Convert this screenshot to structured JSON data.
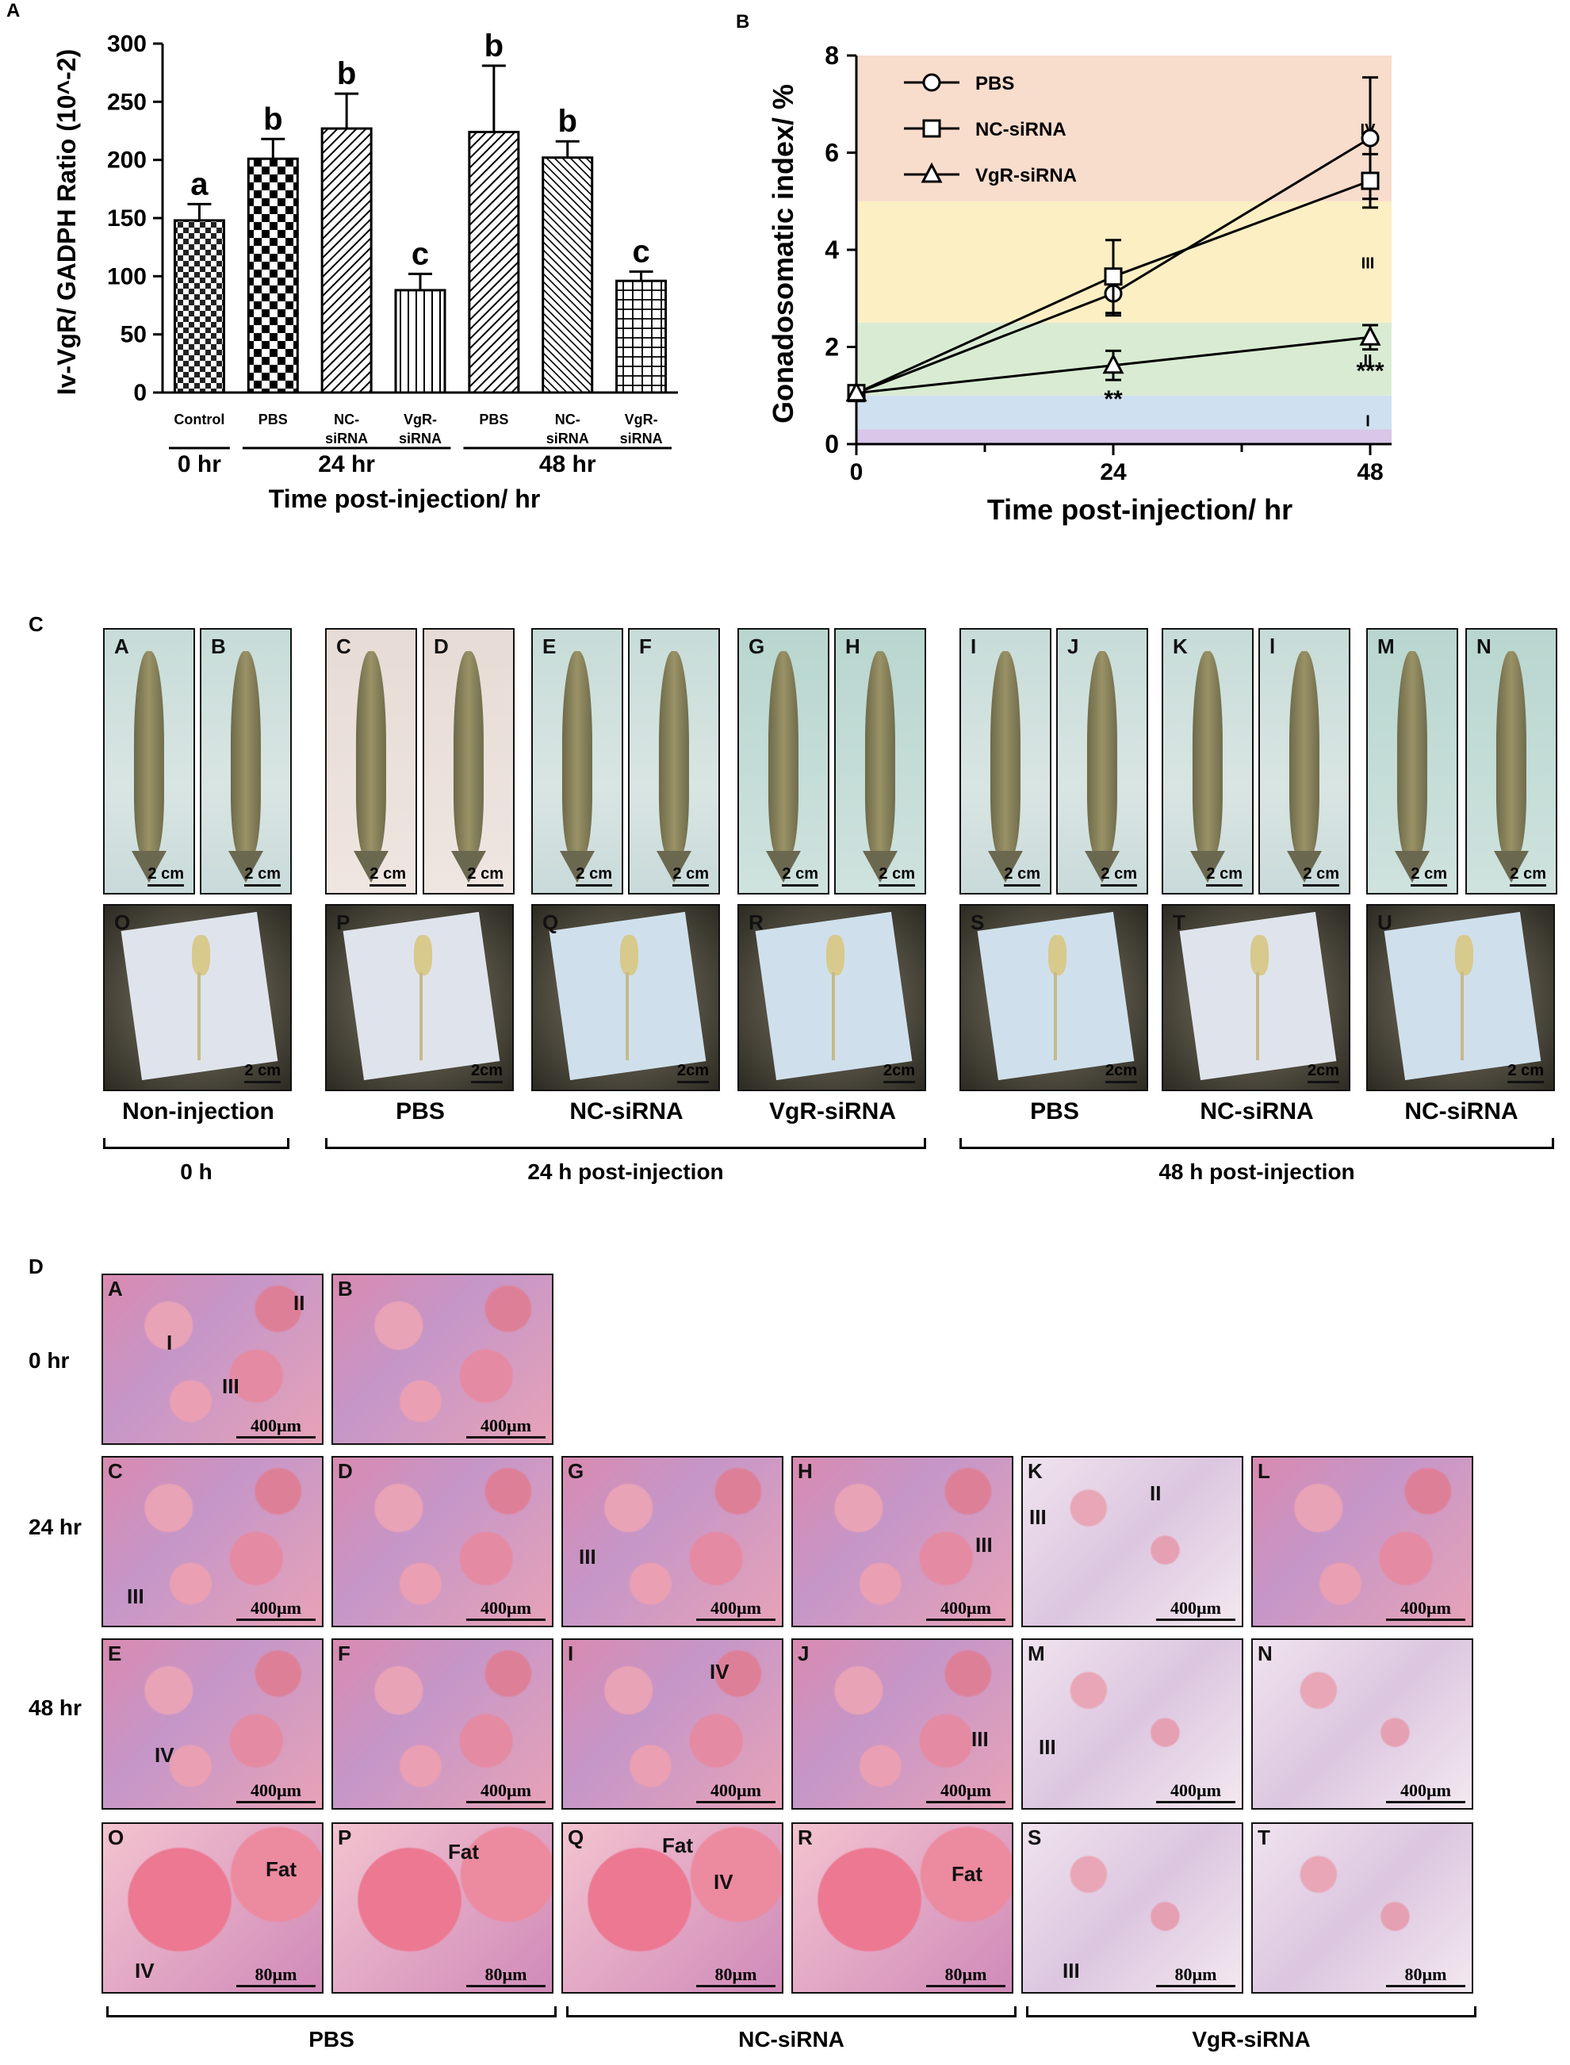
{
  "panels": {
    "A": "A",
    "B": "B",
    "C": "C",
    "D": "D"
  },
  "chart_data": [
    {
      "type": "bar",
      "panel": "A",
      "ylabel": "Iv-VgR/ GADPH Ratio (10^-2)",
      "xlabel": "Time post-injection/ hr",
      "ylim": [
        0,
        300
      ],
      "yticks": [
        "0",
        "50",
        "100",
        "150",
        "200",
        "250",
        "300"
      ],
      "categories": [
        "Control",
        "PBS",
        "NC-siRNA",
        "VgR-siRNA",
        "PBS",
        "NC-siRNA",
        "VgR-siRNA"
      ],
      "values": [
        148,
        201,
        227,
        88,
        224,
        202,
        96
      ],
      "errors": [
        14,
        17,
        30,
        14,
        57,
        14,
        8
      ],
      "letters": [
        "a",
        "b",
        "b",
        "c",
        "b",
        "b",
        "c"
      ],
      "patterns": [
        "check",
        "checkbold",
        "diagright",
        "vertical",
        "diagright",
        "diagleft",
        "grid"
      ],
      "groups": [
        "0 hr",
        "24 hr",
        "48 hr"
      ]
    },
    {
      "type": "line",
      "panel": "B",
      "ylabel": "Gonadosomatic index/ %",
      "xlabel": "Time post-injection/ hr",
      "ylim": [
        0,
        8
      ],
      "xlim": [
        0,
        50
      ],
      "xticks": [
        "0",
        "24",
        "48"
      ],
      "yticks": [
        "0",
        "2",
        "4",
        "6",
        "8"
      ],
      "x": [
        0,
        24,
        48
      ],
      "series": [
        {
          "name": "PBS",
          "marker": "circle",
          "values": [
            1.05,
            3.1,
            6.3
          ],
          "errors": [
            0.05,
            0.45,
            1.25
          ]
        },
        {
          "name": "NC-siRNA",
          "marker": "square",
          "values": [
            1.05,
            3.45,
            5.42
          ],
          "errors": [
            0.05,
            0.75,
            0.55
          ]
        },
        {
          "name": "VgR-siRNA",
          "marker": "triangle",
          "values": [
            1.05,
            1.62,
            2.2
          ],
          "errors": [
            0.05,
            0.3,
            0.25
          ]
        }
      ],
      "stages": [
        {
          "label": "I",
          "from": 0,
          "to": 1,
          "color": "#cfe0f0"
        },
        {
          "label": "II",
          "from": 1,
          "to": 2.5,
          "color": "#d9ecd3"
        },
        {
          "label": "III",
          "from": 2.5,
          "to": 5,
          "color": "#fcefc4"
        },
        {
          "label": "IV",
          "from": 5,
          "to": 8,
          "color": "#f8dccc"
        }
      ],
      "significance": [
        {
          "x": 24,
          "label": "**"
        },
        {
          "x": 48,
          "label": "***"
        }
      ]
    }
  ],
  "photos": {
    "shrimp_tiles": [
      "A",
      "B",
      "C",
      "D",
      "E",
      "F",
      "G",
      "H",
      "I",
      "J",
      "K",
      "l",
      "M",
      "N"
    ],
    "gonad_tiles": [
      "O",
      "P",
      "Q",
      "R",
      "S",
      "T",
      "U"
    ],
    "scale_shrimp": "2 cm",
    "scale_gonad": [
      "2 cm",
      "2cm",
      "2cm",
      "2cm",
      "2cm",
      "2cm",
      "2 cm"
    ],
    "gonad_labels": [
      "Non-injection",
      "PBS",
      "NC-siRNA",
      "VgR-siRNA",
      "PBS",
      "NC-siRNA",
      "NC-siRNA"
    ],
    "groups": [
      "0 h",
      "24 h post-injection",
      "48 h post-injection"
    ]
  },
  "histology": {
    "rows": [
      "0 hr",
      "24 hr",
      "48 hr"
    ],
    "row0": [
      "A",
      "B"
    ],
    "row1": [
      "C",
      "D",
      "G",
      "H",
      "K",
      "L"
    ],
    "row2": [
      "E",
      "F",
      "I",
      "J",
      "M",
      "N"
    ],
    "row3": [
      "O",
      "P",
      "Q",
      "R",
      "S",
      "T"
    ],
    "scale_low": "400µm",
    "scale_high": "80µm",
    "annotations": {
      "I": "I",
      "II": "II",
      "III": "III",
      "IV": "IV",
      "Fat": "Fat"
    },
    "groups": [
      "PBS",
      "NC-siRNA",
      "VgR-siRNA"
    ]
  }
}
